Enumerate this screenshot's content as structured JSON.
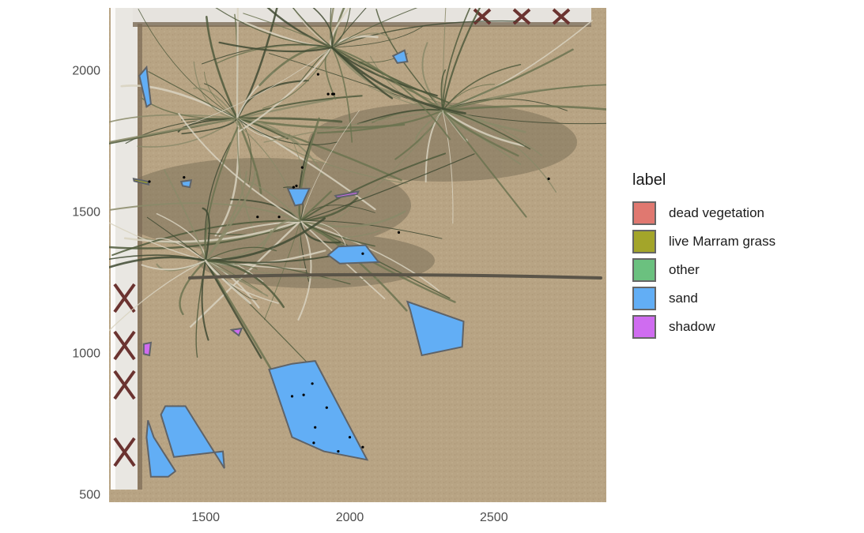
{
  "chart_data": {
    "type": "scatter",
    "title": "",
    "xlabel": "",
    "ylabel": "",
    "xlim": [
      1165,
      2890
    ],
    "ylim": [
      470,
      2220
    ],
    "x_ticks": [
      1500,
      2000,
      2500
    ],
    "y_ticks": [
      500,
      1000,
      1500,
      2000
    ],
    "background": "photograph of Marram grass clumps on a sand plot with a white pipe frame",
    "legend": {
      "title": "label",
      "placement": "right",
      "items": [
        {
          "name": "dead vegetation",
          "color": "#e07870"
        },
        {
          "name": "live Marram grass",
          "color": "#a3a52a"
        },
        {
          "name": "other",
          "color": "#6bc17f"
        },
        {
          "name": "sand",
          "color": "#62aef5"
        },
        {
          "name": "shadow",
          "color": "#cf6cf0"
        }
      ]
    },
    "polygons": [
      {
        "label": "sand",
        "points": [
          [
            1800,
            960
          ],
          [
            1880,
            970
          ],
          [
            2060,
            620
          ],
          [
            1910,
            650
          ],
          [
            1800,
            700
          ],
          [
            1720,
            940
          ]
        ]
      },
      {
        "label": "sand",
        "points": [
          [
            1360,
            810
          ],
          [
            1430,
            810
          ],
          [
            1565,
            590
          ],
          [
            1560,
            650
          ],
          [
            1390,
            630
          ],
          [
            1345,
            780
          ]
        ]
      },
      {
        "label": "sand",
        "points": [
          [
            1300,
            760
          ],
          [
            1320,
            700
          ],
          [
            1395,
            580
          ],
          [
            1370,
            560
          ],
          [
            1310,
            560
          ],
          [
            1295,
            700
          ]
        ]
      },
      {
        "label": "sand",
        "points": [
          [
            2200,
            1180
          ],
          [
            2395,
            1110
          ],
          [
            2390,
            1020
          ],
          [
            2250,
            990
          ],
          [
            2210,
            1150
          ]
        ]
      },
      {
        "label": "sand",
        "points": [
          [
            1960,
            1375
          ],
          [
            2055,
            1380
          ],
          [
            2100,
            1320
          ],
          [
            1965,
            1315
          ],
          [
            1925,
            1345
          ]
        ]
      },
      {
        "label": "sand",
        "points": [
          [
            1785,
            1580
          ],
          [
            1860,
            1580
          ],
          [
            1835,
            1525
          ],
          [
            1810,
            1520
          ]
        ]
      },
      {
        "label": "sand",
        "points": [
          [
            2150,
            2050
          ],
          [
            2190,
            2070
          ],
          [
            2200,
            2030
          ],
          [
            2165,
            2025
          ]
        ]
      },
      {
        "label": "sand",
        "points": [
          [
            1270,
            1980
          ],
          [
            1295,
            2010
          ],
          [
            1310,
            1880
          ],
          [
            1295,
            1870
          ]
        ]
      },
      {
        "label": "sand",
        "points": [
          [
            1415,
            1605
          ],
          [
            1450,
            1610
          ],
          [
            1445,
            1585
          ],
          [
            1420,
            1590
          ]
        ]
      },
      {
        "label": "shadow",
        "points": [
          [
            1285,
            1030
          ],
          [
            1310,
            1035
          ],
          [
            1305,
            990
          ],
          [
            1285,
            995
          ]
        ]
      },
      {
        "label": "shadow",
        "points": [
          [
            1590,
            1080
          ],
          [
            1625,
            1085
          ],
          [
            1615,
            1060
          ]
        ]
      },
      {
        "label": "shadow",
        "points": [
          [
            1950,
            1555
          ],
          [
            2030,
            1570
          ],
          [
            2025,
            1560
          ],
          [
            1955,
            1548
          ]
        ]
      },
      {
        "label": "live Marram grass",
        "points": [
          [
            1250,
            1615
          ],
          [
            1300,
            1605
          ],
          [
            1302,
            1595
          ],
          [
            1252,
            1607
          ]
        ]
      }
    ],
    "points": [
      [
        1890,
        1985
      ],
      [
        1925,
        1915
      ],
      [
        1940,
        1915
      ],
      [
        1945,
        1915
      ],
      [
        1835,
        1655
      ],
      [
        1815,
        1590
      ],
      [
        1805,
        1585
      ],
      [
        2690,
        1615
      ],
      [
        1305,
        1605
      ],
      [
        1425,
        1620
      ],
      [
        1680,
        1480
      ],
      [
        1755,
        1480
      ],
      [
        2170,
        1425
      ],
      [
        2045,
        1350
      ],
      [
        1870,
        890
      ],
      [
        1840,
        850
      ],
      [
        1800,
        845
      ],
      [
        1920,
        805
      ],
      [
        1880,
        735
      ],
      [
        2000,
        700
      ],
      [
        2045,
        665
      ],
      [
        1875,
        680
      ],
      [
        1960,
        650
      ]
    ]
  }
}
